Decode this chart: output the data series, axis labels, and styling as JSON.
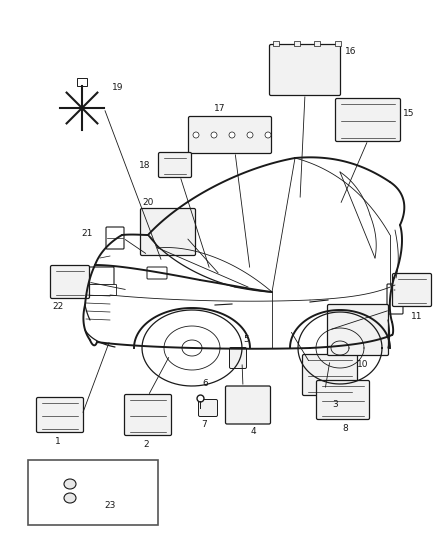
{
  "bg_color": "#ffffff",
  "line_color": "#1a1a1a",
  "figure_width": 4.38,
  "figure_height": 5.33,
  "dpi": 100
}
